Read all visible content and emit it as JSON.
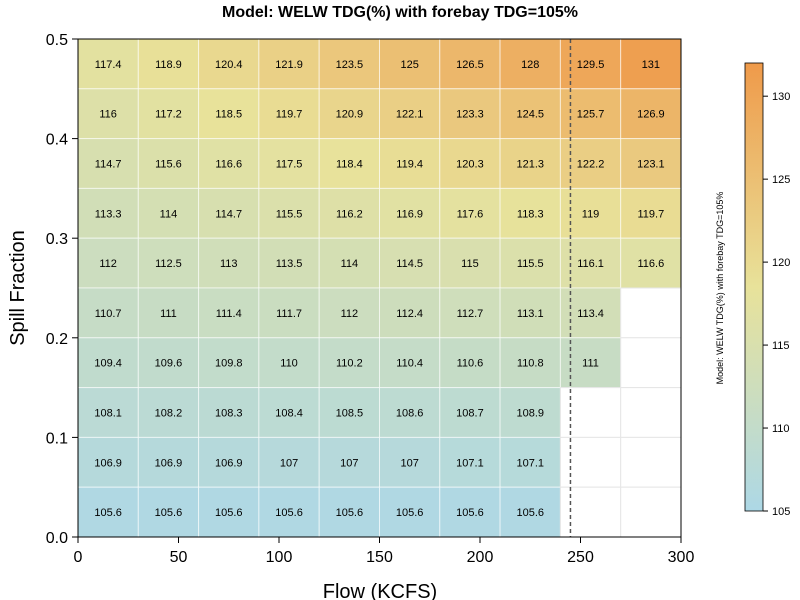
{
  "chart_data": {
    "type": "heatmap",
    "title": "Model: WELW TDG(%) with forebay TDG=105%",
    "xlabel": "Flow (KCFS)",
    "ylabel": "Spill Fraction",
    "xlim": [
      0,
      300
    ],
    "ylim": [
      0,
      0.5
    ],
    "x_ticks": [
      0,
      50,
      100,
      150,
      200,
      250,
      300
    ],
    "x_tick_labels": [
      "0",
      "50",
      "100",
      "150",
      "200",
      "250",
      "300"
    ],
    "y_ticks": [
      0.0,
      0.1,
      0.2,
      0.3,
      0.4,
      0.5
    ],
    "y_tick_labels": [
      "0.0",
      "0.1",
      "0.2",
      "0.3",
      "0.4",
      "0.5"
    ],
    "x_bin_edges": [
      0,
      30,
      60,
      90,
      120,
      150,
      180,
      210,
      240,
      270,
      300
    ],
    "y_bin_edges": [
      0,
      0.05,
      0.1,
      0.15,
      0.2,
      0.25,
      0.3,
      0.35,
      0.4,
      0.45,
      0.5
    ],
    "reference_line": {
      "x": 245,
      "style": "dashed"
    },
    "colorbar": {
      "label": "Model: WELW TDG(%) with forebay TDG=105%",
      "range": [
        105,
        132
      ],
      "ticks": [
        105,
        110,
        115,
        120,
        125,
        130
      ],
      "tick_labels": [
        "105",
        "110",
        "115",
        "120",
        "125",
        "130"
      ],
      "color_low": "#add8e6",
      "color_mid": "#e8e29a",
      "color_high": "#ef9a4a"
    },
    "grid_rows_top_to_bottom": [
      [
        "117.4",
        "118.9",
        "120.4",
        "121.9",
        "123.5",
        "125",
        "126.5",
        "128",
        "129.5",
        "131"
      ],
      [
        "116",
        "117.2",
        "118.5",
        "119.7",
        "120.9",
        "122.1",
        "123.3",
        "124.5",
        "125.7",
        "126.9"
      ],
      [
        "114.7",
        "115.6",
        "116.6",
        "117.5",
        "118.4",
        "119.4",
        "120.3",
        "121.3",
        "122.2",
        "123.1"
      ],
      [
        "113.3",
        "114",
        "114.7",
        "115.5",
        "116.2",
        "116.9",
        "117.6",
        "118.3",
        "119",
        "119.7"
      ],
      [
        "112",
        "112.5",
        "113",
        "113.5",
        "114",
        "114.5",
        "115",
        "115.5",
        "116.1",
        "116.6"
      ],
      [
        "110.7",
        "111",
        "111.4",
        "111.7",
        "112",
        "112.4",
        "112.7",
        "113.1",
        "113.4",
        null
      ],
      [
        "109.4",
        "109.6",
        "109.8",
        "110",
        "110.2",
        "110.4",
        "110.6",
        "110.8",
        "111",
        null
      ],
      [
        "108.1",
        "108.2",
        "108.3",
        "108.4",
        "108.5",
        "108.6",
        "108.7",
        "108.9",
        null,
        null
      ],
      [
        "106.9",
        "106.9",
        "106.9",
        "107",
        "107",
        "107",
        "107.1",
        "107.1",
        null,
        null
      ],
      [
        "105.6",
        "105.6",
        "105.6",
        "105.6",
        "105.6",
        "105.6",
        "105.6",
        "105.6",
        null,
        null
      ]
    ]
  }
}
